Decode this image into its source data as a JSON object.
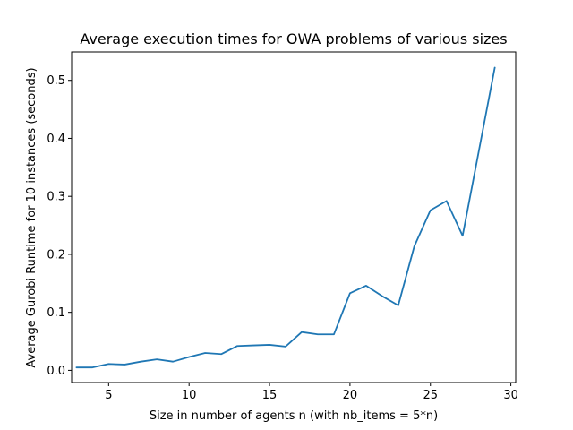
{
  "chart_data": {
    "type": "line",
    "title": "Average execution times for OWA problems of various sizes",
    "xlabel": "Size in number of agents n (with nb_items = 5*n)",
    "ylabel": "Average Gurobi Runtime for 10 instances (seconds)",
    "xlim": [
      2.7,
      30.3
    ],
    "ylim": [
      -0.021,
      0.549
    ],
    "xticks": [
      5,
      10,
      15,
      20,
      25,
      30
    ],
    "yticks": [
      0.0,
      0.1,
      0.2,
      0.3,
      0.4,
      0.5
    ],
    "xtick_labels": [
      "5",
      "10",
      "15",
      "20",
      "25",
      "30"
    ],
    "ytick_labels": [
      "0.0",
      "0.1",
      "0.2",
      "0.3",
      "0.4",
      "0.5"
    ],
    "grid": false,
    "series": [
      {
        "color": "#1f77b4",
        "x": [
          3,
          4,
          5,
          6,
          7,
          8,
          9,
          10,
          11,
          12,
          13,
          14,
          15,
          16,
          17,
          18,
          19,
          20,
          21,
          22,
          23,
          24,
          25,
          26,
          27,
          28,
          29
        ],
        "y": [
          0.005,
          0.005,
          0.011,
          0.01,
          0.015,
          0.019,
          0.015,
          0.023,
          0.03,
          0.028,
          0.042,
          0.043,
          0.044,
          0.041,
          0.066,
          0.062,
          0.062,
          0.133,
          0.146,
          0.128,
          0.112,
          0.214,
          0.276,
          0.292,
          0.232,
          0.377,
          0.522
        ]
      }
    ]
  }
}
